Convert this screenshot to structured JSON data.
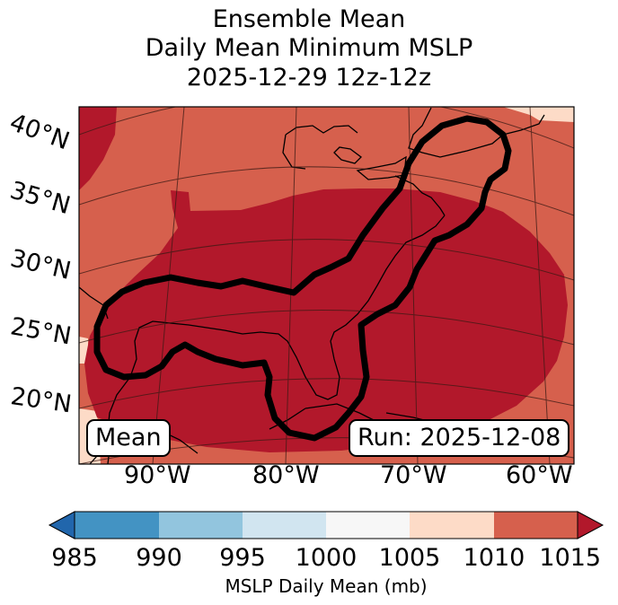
{
  "title": {
    "line1": "Ensemble Mean",
    "line2": "Daily Mean Minimum MSLP",
    "line3": "2025-12-29 12z-12z"
  },
  "map": {
    "lat_labels": [
      "40°N",
      "35°N",
      "30°N",
      "25°N",
      "20°N"
    ],
    "lon_labels": [
      "90°W",
      "80°W",
      "70°W",
      "60°W"
    ],
    "mean_label": "Mean",
    "run_label": "Run: 2025-12-08",
    "colors": {
      "land_fill": "#d6604d",
      "low_fill": "#b2182b",
      "high_fill": "#fddbc7",
      "contour": "#000000"
    }
  },
  "colorbar": {
    "label": "MSLP Daily Mean (mb)",
    "ticks": [
      "985",
      "990",
      "995",
      "1000",
      "1005",
      "1010",
      "1015"
    ],
    "colors": [
      "#2166ac",
      "#4393c3",
      "#92c5de",
      "#d1e5f0",
      "#f7f7f7",
      "#fddbc7",
      "#d6604d",
      "#b2182b"
    ]
  }
}
